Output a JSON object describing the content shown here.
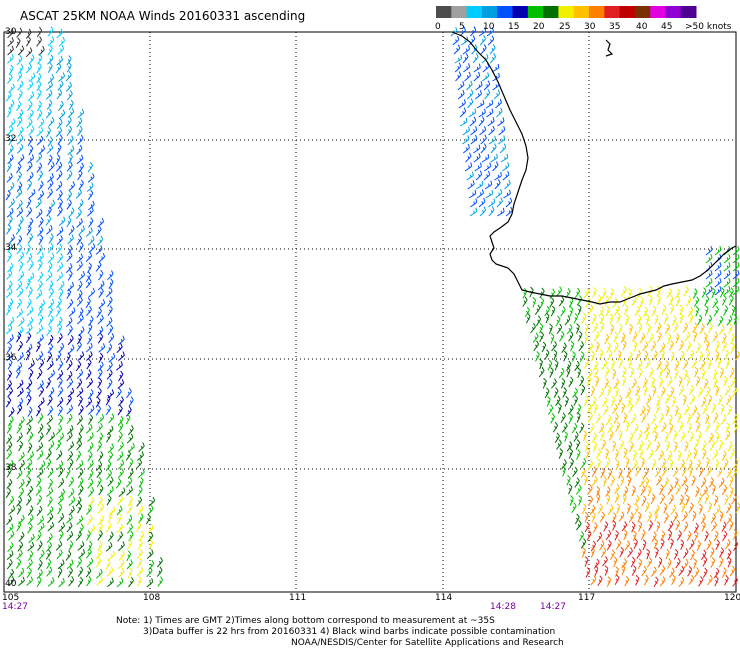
{
  "title": "ASCAT 25KM NOAA Winds 20160331 ascending",
  "legend": {
    "colors": [
      "#4d4d4d",
      "#a0a0a0",
      "#00ccff",
      "#00a0e0",
      "#0050ff",
      "#0000b0",
      "#00c000",
      "#007000",
      "#f0f000",
      "#ffc000",
      "#ff8000",
      "#e02020",
      "#c00000",
      "#7a3000",
      "#e000e0",
      "#9000d0",
      "#500090"
    ],
    "labels": [
      "0",
      "5",
      "10",
      "15",
      "20",
      "25",
      "30",
      "35",
      "40",
      "45",
      ">50 knots"
    ]
  },
  "lon_labels": [
    "105",
    "108",
    "111",
    "114",
    "117",
    "120"
  ],
  "lat_labels": [
    "30",
    "32",
    "34",
    "36",
    "38",
    "40"
  ],
  "times": [
    "14:27",
    "14:28",
    "14:27"
  ],
  "notes": [
    "Note: 1) Times are GMT 2)Times along bottom correspond to measurement at ~35S",
    "3)Data buffer is 22 hrs from 20160331 4) Black wind barbs indicate possible contamination",
    "NOAA/NESDIS/Center for Satellite Applications and Research"
  ]
}
